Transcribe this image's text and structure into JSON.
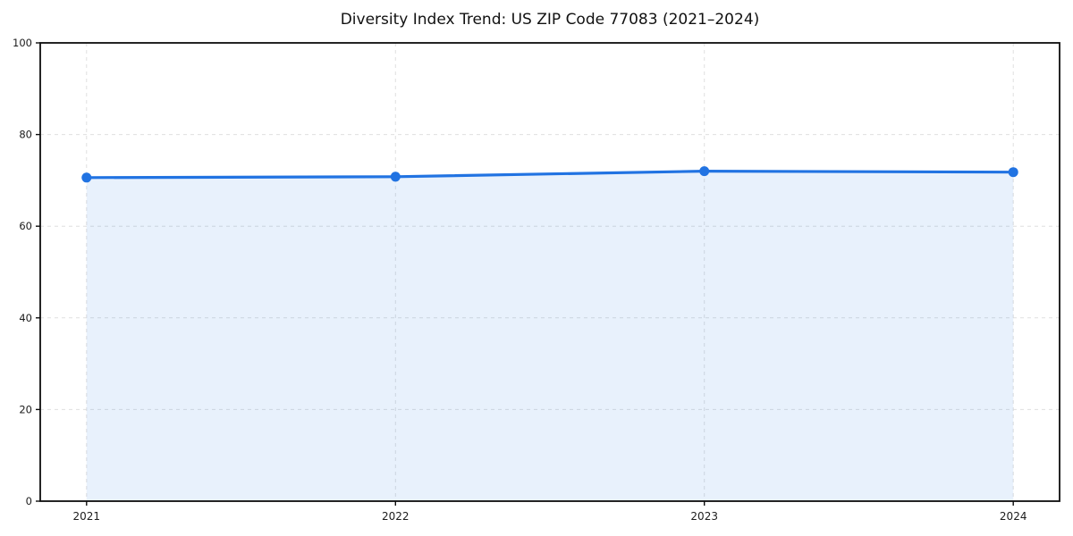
{
  "chart_data": {
    "type": "area",
    "title": "Diversity Index Trend: US ZIP Code 77083 (2021–2024)",
    "categories": [
      "2021",
      "2022",
      "2023",
      "2024"
    ],
    "series": [
      {
        "name": "Diversity Index",
        "values": [
          70.6,
          70.8,
          72.0,
          71.8
        ]
      }
    ],
    "xlabel": "",
    "ylabel": "",
    "ylim": [
      0,
      100
    ],
    "yticks": [
      0,
      20,
      40,
      60,
      80,
      100
    ],
    "grid": true,
    "grid_style": "dashed",
    "legend": false,
    "line_color": "#2173e2",
    "fill_color": "#2173e2",
    "fill_opacity": 0.1,
    "marker": "circle",
    "background": "#ffffff",
    "spine_color": "#0d0d0d",
    "grid_color": "#dcdcdc",
    "tick_label_color": "#1c1c1c"
  }
}
